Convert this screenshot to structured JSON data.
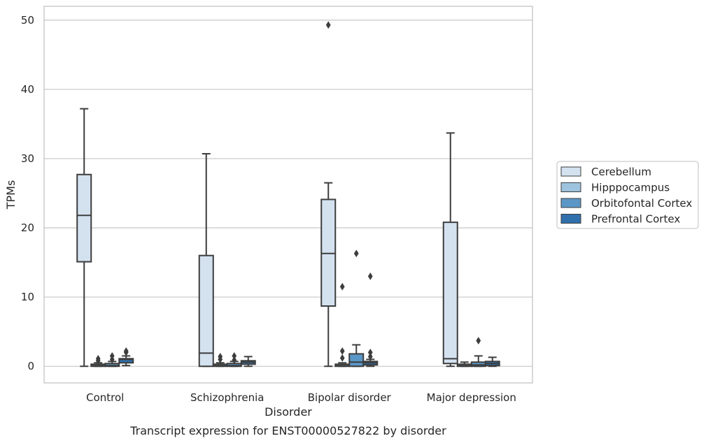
{
  "caption": "Transcript expression for ENST00000527822 by disorder",
  "chart_data": {
    "type": "box",
    "title": "",
    "xlabel": "Disorder",
    "ylabel": "TPMs",
    "ylim": [
      -2.4,
      52
    ],
    "yticks": [
      0,
      10,
      20,
      30,
      40,
      50
    ],
    "grid": true,
    "legend_position": "right",
    "categories": [
      "Control",
      "Schizophrenia",
      "Bipolar disorder",
      "Major depression"
    ],
    "series": [
      {
        "name": "Cerebellum",
        "color": "#d4e2f0",
        "boxes": [
          {
            "whislo": 0.0,
            "q1": 15.1,
            "med": 21.8,
            "q3": 27.7,
            "whishi": 37.2,
            "fliers": []
          },
          {
            "whislo": 0.0,
            "q1": 0.0,
            "med": 1.9,
            "q3": 16.0,
            "whishi": 30.7,
            "fliers": []
          },
          {
            "whislo": 0.0,
            "q1": 8.7,
            "med": 16.3,
            "q3": 24.1,
            "whishi": 26.5,
            "fliers": [
              49.3
            ]
          },
          {
            "whislo": 0.0,
            "q1": 0.4,
            "med": 1.1,
            "q3": 20.8,
            "whishi": 33.7,
            "fliers": []
          }
        ]
      },
      {
        "name": "Hipppocampus",
        "color": "#9dc3de",
        "boxes": [
          {
            "whislo": 0.0,
            "q1": 0.0,
            "med": 0.1,
            "q3": 0.3,
            "whishi": 0.5,
            "fliers": [
              0.8,
              1.1
            ]
          },
          {
            "whislo": 0.0,
            "q1": 0.0,
            "med": 0.1,
            "q3": 0.3,
            "whishi": 0.5,
            "fliers": [
              1.0,
              1.4
            ]
          },
          {
            "whislo": 0.0,
            "q1": 0.0,
            "med": 0.1,
            "q3": 0.3,
            "whishi": 0.5,
            "fliers": [
              1.2,
              2.2,
              11.5
            ]
          },
          {
            "whislo": 0.0,
            "q1": 0.0,
            "med": 0.1,
            "q3": 0.3,
            "whishi": 0.6,
            "fliers": []
          }
        ]
      },
      {
        "name": "Orbitofontal Cortex",
        "color": "#5b97c6",
        "boxes": [
          {
            "whislo": 0.0,
            "q1": 0.0,
            "med": 0.1,
            "q3": 0.4,
            "whishi": 0.7,
            "fliers": [
              1.0,
              1.5
            ]
          },
          {
            "whislo": 0.0,
            "q1": 0.0,
            "med": 0.1,
            "q3": 0.4,
            "whishi": 0.7,
            "fliers": [
              0.9,
              1.5
            ]
          },
          {
            "whislo": 0.0,
            "q1": 0.0,
            "med": 0.6,
            "q3": 1.8,
            "whishi": 3.1,
            "fliers": [
              16.3
            ]
          },
          {
            "whislo": 0.0,
            "q1": 0.0,
            "med": 0.2,
            "q3": 0.6,
            "whishi": 1.5,
            "fliers": [
              3.7
            ]
          }
        ]
      },
      {
        "name": "Prefrontal Cortex",
        "color": "#2f6fab",
        "boxes": [
          {
            "whislo": 0.1,
            "q1": 0.5,
            "med": 1.0,
            "q3": 1.1,
            "whishi": 1.5,
            "fliers": [
              2.0,
              2.2
            ]
          },
          {
            "whislo": 0.0,
            "q1": 0.3,
            "med": 0.6,
            "q3": 0.8,
            "whishi": 1.4,
            "fliers": []
          },
          {
            "whislo": 0.0,
            "q1": 0.2,
            "med": 0.5,
            "q3": 0.7,
            "whishi": 1.0,
            "fliers": [
              1.4,
              2.0,
              13.0
            ]
          },
          {
            "whislo": 0.0,
            "q1": 0.1,
            "med": 0.4,
            "q3": 0.7,
            "whishi": 1.3,
            "fliers": []
          }
        ]
      }
    ]
  }
}
